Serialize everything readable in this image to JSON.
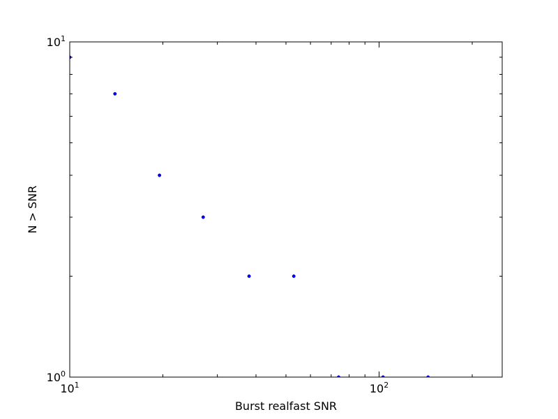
{
  "chart_data": {
    "type": "scatter",
    "title": "",
    "xlabel": "Burst realfast SNR",
    "ylabel": "N > SNR",
    "xscale": "log",
    "yscale": "log",
    "xlim": [
      10,
      250
    ],
    "ylim": [
      1,
      10
    ],
    "grid": false,
    "legend": "none",
    "x_ticks": [
      {
        "value": 10,
        "base": "10",
        "exp": "1"
      },
      {
        "value": 100,
        "base": "10",
        "exp": "2"
      }
    ],
    "y_ticks": [
      {
        "value": 1,
        "base": "10",
        "exp": "0"
      },
      {
        "value": 10,
        "base": "10",
        "exp": "1"
      }
    ],
    "series": [
      {
        "color": "#0000ff",
        "points": [
          {
            "x": 10.0,
            "y": 9
          },
          {
            "x": 14.0,
            "y": 7
          },
          {
            "x": 19.5,
            "y": 4
          },
          {
            "x": 27.0,
            "y": 3
          },
          {
            "x": 38.0,
            "y": 2
          },
          {
            "x": 53.0,
            "y": 2
          },
          {
            "x": 74.0,
            "y": 1
          },
          {
            "x": 103.0,
            "y": 1
          },
          {
            "x": 144.0,
            "y": 1
          }
        ]
      }
    ]
  }
}
